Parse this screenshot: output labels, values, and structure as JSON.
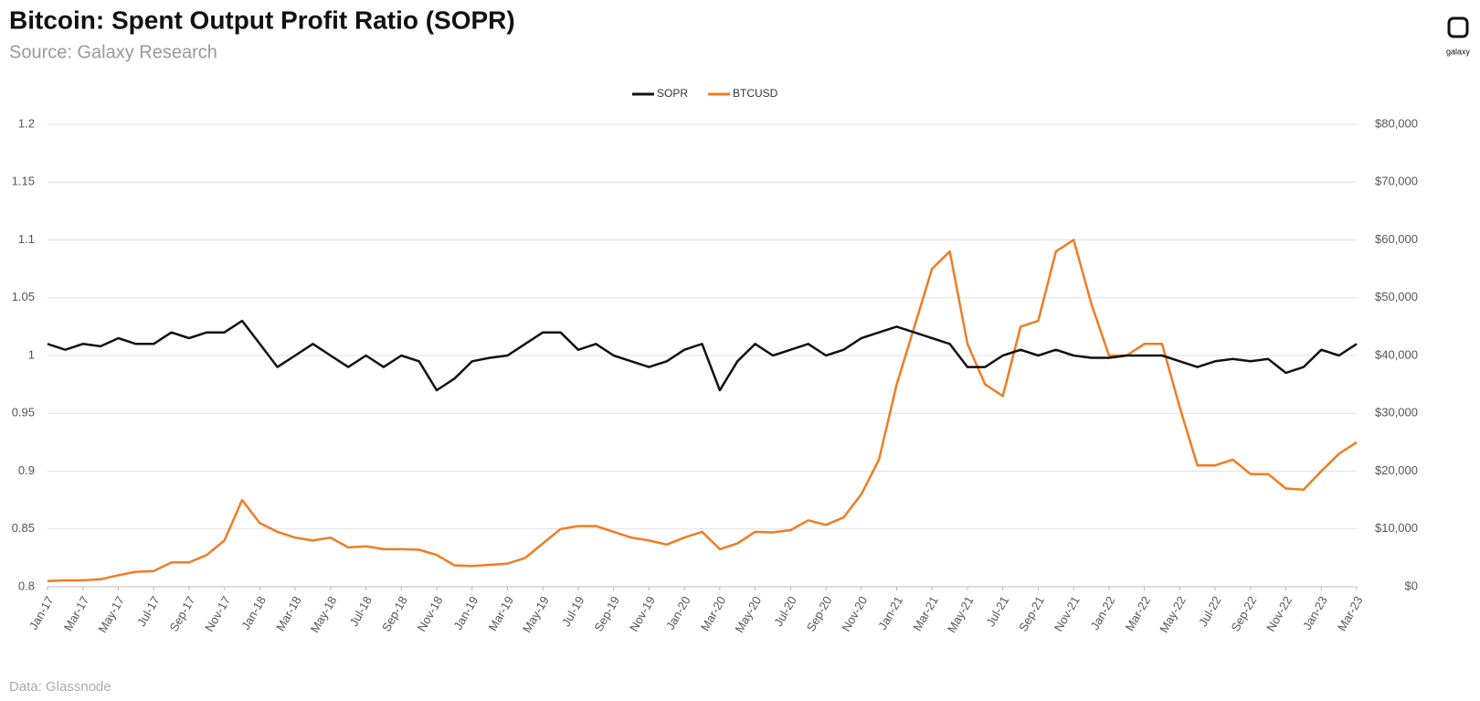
{
  "chart_data": {
    "type": "line",
    "title": "Bitcoin: Spent Output Profit Ratio (SOPR)",
    "subtitle": "Source: Galaxy Research",
    "note": "Data: Glassnode",
    "logo": "galaxy",
    "legend": "top",
    "grid": true,
    "categories": [
      "Jan-17",
      null,
      "Mar-17",
      null,
      "May-17",
      null,
      "Jul-17",
      null,
      "Sep-17",
      null,
      "Nov-17",
      null,
      "Jan-18",
      null,
      "Mar-18",
      null,
      "May-18",
      null,
      "Jul-18",
      null,
      "Sep-18",
      null,
      "Nov-18",
      null,
      "Jan-19",
      null,
      "Mar-19",
      null,
      "May-19",
      null,
      "Jul-19",
      null,
      "Sep-19",
      null,
      "Nov-19",
      null,
      "Jan-20",
      null,
      "Mar-20",
      null,
      "May-20",
      null,
      "Jul-20",
      null,
      "Sep-20",
      null,
      "Nov-20",
      null,
      "Jan-21",
      null,
      "Mar-21",
      null,
      "May-21",
      null,
      "Jul-21",
      null,
      "Sep-21",
      null,
      "Nov-21",
      null,
      "Jan-22",
      null,
      "Mar-22",
      null,
      "May-22",
      null,
      "Jul-22",
      null,
      "Sep-22",
      null,
      "Nov-22",
      null,
      "Jan-23",
      null,
      "Mar-23"
    ],
    "series": [
      {
        "name": "SOPR",
        "color": "#111111",
        "axis": "y",
        "values": [
          1.01,
          1.005,
          1.01,
          1.008,
          1.015,
          1.01,
          1.01,
          1.02,
          1.015,
          1.02,
          1.02,
          1.03,
          1.01,
          0.99,
          1.0,
          1.01,
          1.0,
          0.99,
          1.0,
          0.99,
          1.0,
          0.995,
          0.97,
          0.98,
          0.995,
          0.998,
          1.0,
          1.01,
          1.02,
          1.02,
          1.005,
          1.01,
          1.0,
          0.995,
          0.99,
          0.995,
          1.005,
          1.01,
          0.97,
          0.995,
          1.01,
          1.0,
          1.005,
          1.01,
          1.0,
          1.005,
          1.015,
          1.02,
          1.025,
          1.02,
          1.015,
          1.01,
          0.99,
          0.99,
          1.0,
          1.005,
          1.0,
          1.005,
          1.0,
          0.998,
          0.998,
          1.0,
          1.0,
          1.0,
          0.995,
          0.99,
          0.995,
          0.997,
          0.995,
          0.997,
          0.985,
          0.99,
          1.005,
          1.0,
          1.01
        ]
      },
      {
        "name": "BTCUSD",
        "color": "#f07c22",
        "axis": "y2",
        "values": [
          1000,
          1100,
          1100,
          1300,
          2000,
          2600,
          2700,
          4200,
          4200,
          5500,
          8000,
          15000,
          11000,
          9500,
          8500,
          8000,
          8500,
          6800,
          7000,
          6500,
          6500,
          6400,
          5500,
          3700,
          3600,
          3800,
          4000,
          5000,
          7500,
          10000,
          10500,
          10500,
          9500,
          8500,
          8000,
          7300,
          8500,
          9500,
          6500,
          7500,
          9500,
          9400,
          9800,
          11500,
          10700,
          12000,
          16000,
          22000,
          35000,
          45000,
          55000,
          58000,
          42000,
          35000,
          33000,
          45000,
          46000,
          58000,
          60000,
          49000,
          40000,
          40000,
          42000,
          42000,
          31000,
          21000,
          21000,
          22000,
          19500,
          19500,
          17000,
          16800,
          20000,
          23000,
          25000
        ]
      }
    ],
    "ylim": [
      0.8,
      1.2
    ],
    "yticks": [
      0.8,
      0.85,
      0.9,
      0.95,
      1,
      1.05,
      1.1,
      1.15,
      1.2
    ],
    "y2lim": [
      0,
      80000
    ],
    "y2ticks": [
      {
        "value": 0,
        "label": "$0"
      },
      {
        "value": 10000,
        "label": "$10,000"
      },
      {
        "value": 20000,
        "label": "$20,000"
      },
      {
        "value": 30000,
        "label": "$30,000"
      },
      {
        "value": 40000,
        "label": "$40,000"
      },
      {
        "value": 50000,
        "label": "$50,000"
      },
      {
        "value": 60000,
        "label": "$60,000"
      },
      {
        "value": 70000,
        "label": "$70,000"
      },
      {
        "value": 80000,
        "label": "$80,000"
      }
    ]
  }
}
